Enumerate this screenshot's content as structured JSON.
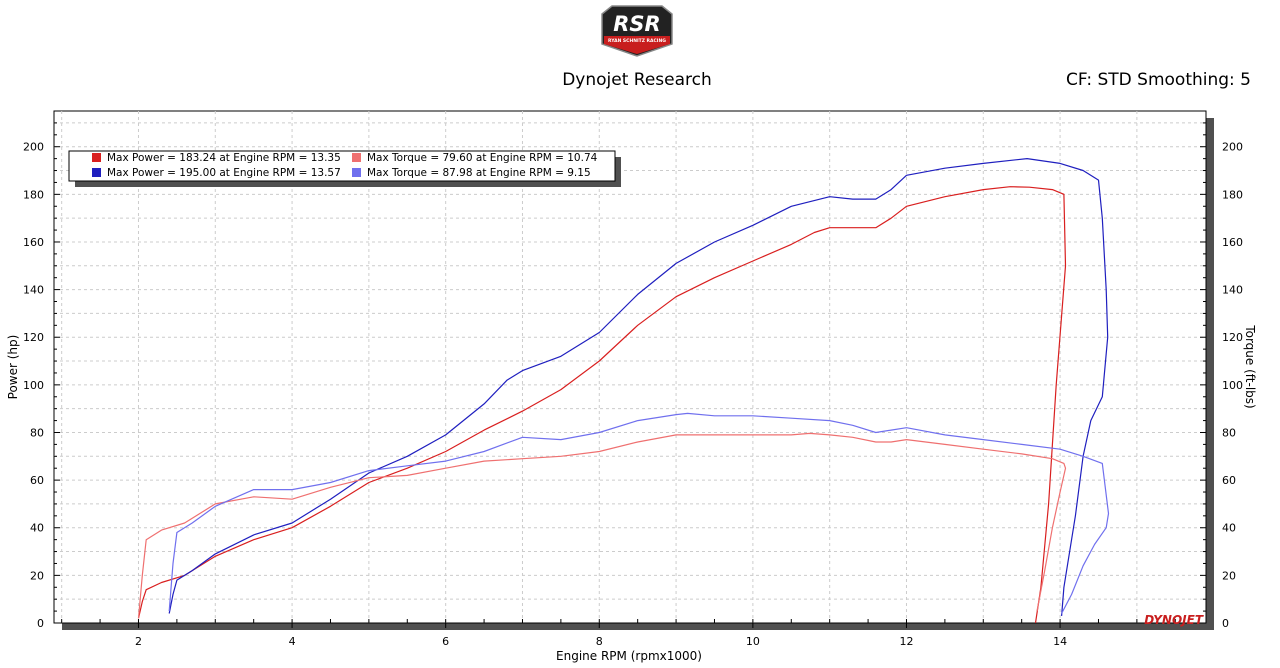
{
  "header": {
    "logo_text": "RSR",
    "logo_subtext": "RYAN SCHNITZ RACING",
    "title": "Dynojet Research",
    "info": "CF: STD Smoothing: 5",
    "footer_logo": "DYNOJET"
  },
  "colors": {
    "power_run1": "#d91f1f",
    "power_run2": "#1f1fbf",
    "torque_run1": "#ef7070",
    "torque_run2": "#7070ee",
    "grid": "#cccccc",
    "frame_shadow": "#505050"
  },
  "chart_data": {
    "type": "line",
    "xlabel": "Engine RPM (rpmx1000)",
    "ylabel": "Power (hp)",
    "y2label": "Torque (ft-lbs)",
    "xlim": [
      0.9,
      15.9
    ],
    "ylim": [
      0,
      215
    ],
    "y2lim": [
      0,
      215
    ],
    "xticks": [
      2,
      4,
      6,
      8,
      10,
      12,
      14
    ],
    "yticks": [
      0,
      20,
      40,
      60,
      80,
      100,
      120,
      140,
      160,
      180,
      200
    ],
    "grid": true,
    "legend_position": "top-left",
    "legend": [
      "Max Power = 183.24 at Engine RPM = 13.35",
      "Max Torque = 79.60 at Engine RPM = 10.74",
      "Max Power = 195.00 at Engine RPM = 13.57",
      "Max Torque = 87.98 at Engine RPM = 9.15"
    ],
    "series": [
      {
        "kind": "power",
        "axis": "left",
        "x": [
          2.0,
          2.05,
          2.1,
          2.3,
          2.6,
          3.0,
          3.5,
          4.0,
          4.5,
          5.0,
          5.5,
          6.0,
          6.5,
          7.0,
          7.5,
          8.0,
          8.5,
          9.0,
          9.5,
          10.0,
          10.5,
          10.8,
          11.0,
          11.3,
          11.6,
          11.8,
          12.0,
          12.5,
          13.0,
          13.35,
          13.6,
          13.9,
          14.05,
          14.07,
          13.95,
          13.85,
          13.75,
          13.68
        ],
        "values": [
          2,
          9,
          14,
          17,
          20,
          28,
          35,
          40,
          49,
          59,
          65,
          72,
          81,
          89,
          98,
          110,
          125,
          137,
          145,
          152,
          159,
          164,
          166,
          166,
          166,
          170,
          175,
          179,
          182,
          183.2,
          183,
          182,
          180,
          150,
          100,
          50,
          15,
          0
        ]
      },
      {
        "kind": "power",
        "axis": "left",
        "x": [
          2.4,
          2.45,
          2.5,
          2.7,
          3.0,
          3.5,
          4.0,
          4.5,
          5.0,
          5.5,
          6.0,
          6.5,
          6.8,
          7.0,
          7.5,
          8.0,
          8.5,
          9.0,
          9.5,
          10.0,
          10.5,
          11.0,
          11.3,
          11.6,
          11.8,
          12.0,
          12.5,
          13.0,
          13.57,
          14.0,
          14.3,
          14.5,
          14.55,
          14.6,
          14.62,
          14.55,
          14.4,
          14.3,
          14.2,
          14.05,
          14.02
        ],
        "values": [
          4,
          12,
          18,
          22,
          29,
          37,
          42,
          52,
          63,
          70,
          79,
          92,
          102,
          106,
          112,
          122,
          138,
          151,
          160,
          167,
          175,
          179,
          178,
          178,
          182,
          188,
          191,
          193,
          195,
          193,
          190,
          186,
          170,
          140,
          120,
          95,
          85,
          70,
          45,
          15,
          3
        ]
      },
      {
        "kind": "torque",
        "axis": "right",
        "x": [
          2.0,
          2.05,
          2.1,
          2.3,
          2.6,
          3.0,
          3.5,
          4.0,
          4.5,
          5.0,
          5.5,
          6.0,
          6.5,
          7.0,
          7.5,
          8.0,
          8.5,
          9.0,
          9.5,
          10.0,
          10.5,
          10.74,
          11.0,
          11.3,
          11.6,
          11.8,
          12.0,
          12.5,
          13.0,
          13.5,
          13.9,
          14.05,
          14.07,
          14.0,
          13.9,
          13.8,
          13.7
        ],
        "values": [
          2,
          20,
          35,
          39,
          42,
          50,
          53,
          52,
          57,
          61,
          62,
          65,
          68,
          69,
          70,
          72,
          76,
          79,
          79,
          79,
          79,
          79.6,
          79,
          78,
          76,
          76,
          77,
          75,
          73,
          71,
          69,
          67,
          65,
          55,
          40,
          22,
          5
        ]
      },
      {
        "kind": "torque",
        "axis": "right",
        "x": [
          2.4,
          2.45,
          2.5,
          2.7,
          3.0,
          3.5,
          4.0,
          4.5,
          5.0,
          5.5,
          6.0,
          6.5,
          7.0,
          7.5,
          8.0,
          8.5,
          9.0,
          9.15,
          9.5,
          10.0,
          10.5,
          11.0,
          11.3,
          11.6,
          11.8,
          12.0,
          12.5,
          13.0,
          13.5,
          14.0,
          14.3,
          14.55,
          14.63,
          14.6,
          14.45,
          14.3,
          14.15,
          14.02
        ],
        "values": [
          5,
          25,
          38,
          42,
          49,
          56,
          56,
          59,
          64,
          66,
          68,
          72,
          78,
          77,
          80,
          85,
          87.5,
          88,
          87,
          87,
          86,
          85,
          83,
          80,
          81,
          82,
          79,
          77,
          75,
          73,
          70,
          67,
          46,
          40,
          33,
          24,
          12,
          4
        ]
      }
    ]
  }
}
